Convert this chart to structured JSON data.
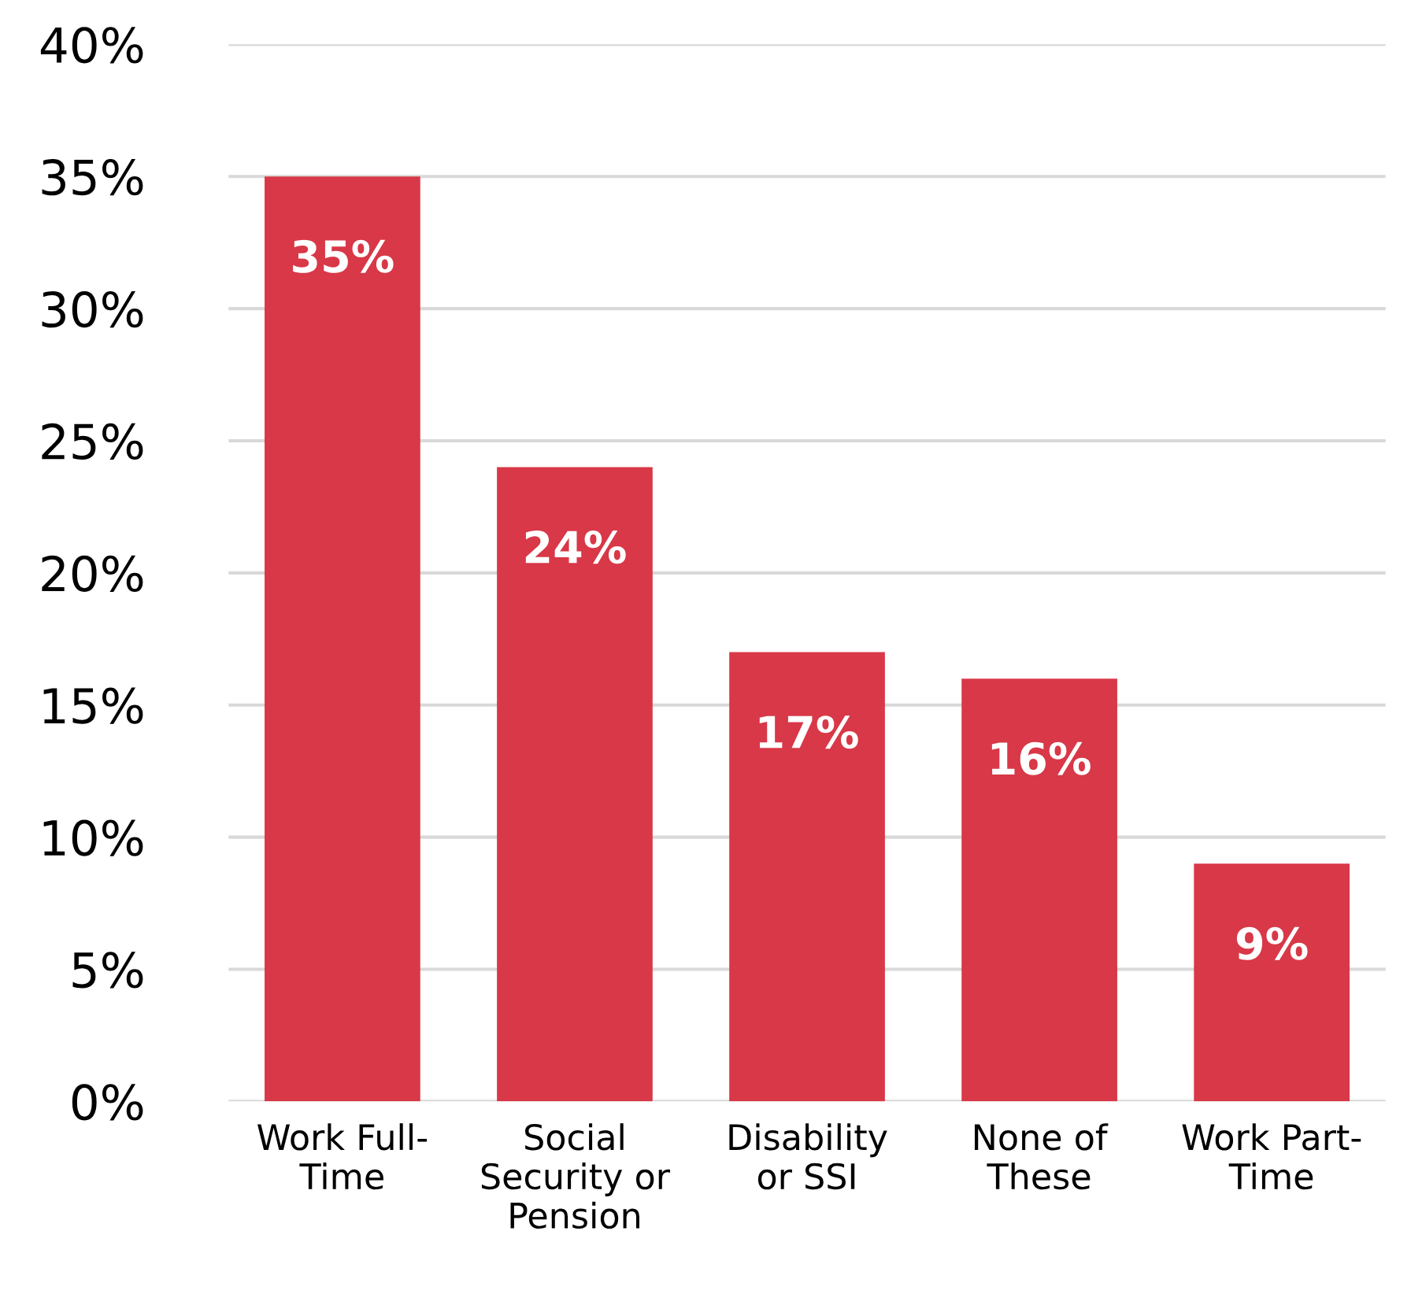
{
  "chart_data": {
    "type": "bar",
    "categories": [
      "Work Full-\nTime",
      "Social\nSecurity or\nPension",
      "Disability\nor SSI",
      "None of\nThese",
      "Work Part-\nTime"
    ],
    "values": [
      35,
      24,
      17,
      16,
      9
    ],
    "value_labels": [
      "35%",
      "24%",
      "17%",
      "16%",
      "9%"
    ],
    "color": "#d83847",
    "ylim": [
      0,
      40
    ],
    "yticks": [
      {
        "value": 0,
        "label": "0%"
      },
      {
        "value": 5,
        "label": "5%"
      },
      {
        "value": 10,
        "label": "10%"
      },
      {
        "value": 15,
        "label": "15%"
      },
      {
        "value": 20,
        "label": "20%"
      },
      {
        "value": 25,
        "label": "25%"
      },
      {
        "value": 30,
        "label": "30%"
      },
      {
        "value": 35,
        "label": "35%"
      },
      {
        "value": 40,
        "label": "40%"
      }
    ],
    "grid": "y"
  }
}
